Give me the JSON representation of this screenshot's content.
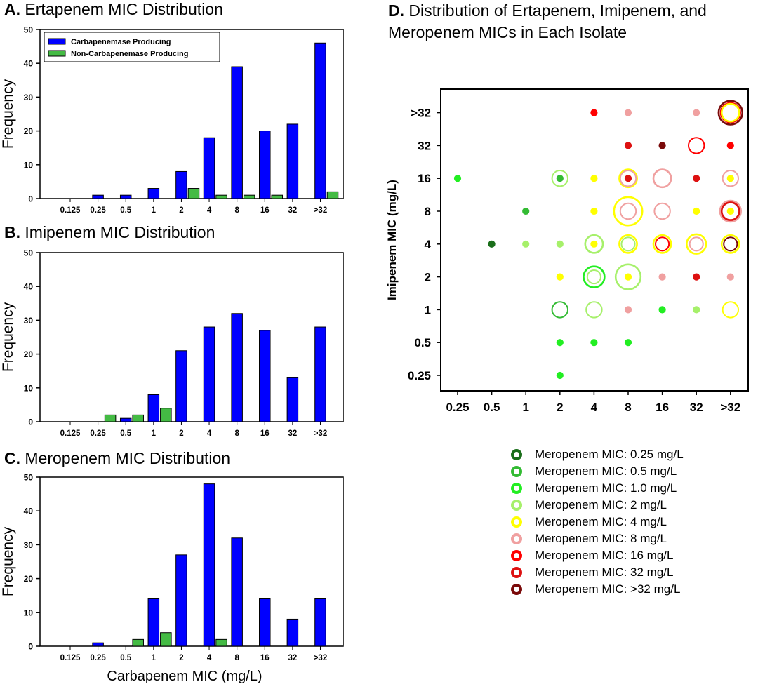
{
  "colors": {
    "carbapenemase": "#0000ff",
    "non_carbapenemase": "#44bb44",
    "meropenem": [
      "#1a6e1a",
      "#33bb33",
      "#22ee22",
      "#a6f06a",
      "#ffff00",
      "#f0a0a0",
      "#ff0000",
      "#dd1111",
      "#7a0a0a"
    ]
  },
  "panel_titles": {
    "a": {
      "letter": "A.",
      "text": " Ertapenem MIC Distribution"
    },
    "b": {
      "letter": "B.",
      "text": " Imipenem MIC Distribution"
    },
    "c": {
      "letter": "C.",
      "text": " Meropenem MIC Distribution"
    },
    "d": {
      "letter": "D.",
      "line1": " Distribution of Ertapenem, Imipenem, and",
      "line2": "Meropenem MICs in Each Isolate"
    }
  },
  "chart_data": [
    {
      "id": "a",
      "type": "bar",
      "title": "A. Ertapenem MIC Distribution",
      "xlabel": "",
      "ylabel": "Frequency",
      "ylim": [
        0,
        50
      ],
      "yticks": [
        0,
        10,
        20,
        30,
        40,
        50
      ],
      "categories": [
        "0.125",
        "0.25",
        "0.5",
        "1",
        "2",
        "4",
        "8",
        "16",
        "32",
        ">32"
      ],
      "series": [
        {
          "name": "Carbapenemase Producing",
          "values": [
            0,
            1,
            1,
            3,
            8,
            18,
            39,
            20,
            22,
            46
          ]
        },
        {
          "name": "Non-Carbapenemase Producing",
          "values": [
            0,
            0,
            0,
            0,
            3,
            1,
            1,
            1,
            0,
            2
          ]
        }
      ],
      "legend": "top-left"
    },
    {
      "id": "b",
      "type": "bar",
      "title": "B. Imipenem MIC Distribution",
      "xlabel": "",
      "ylabel": "Frequency",
      "ylim": [
        0,
        50
      ],
      "yticks": [
        0,
        10,
        20,
        30,
        40,
        50
      ],
      "categories": [
        "0.125",
        "0.25",
        "0.5",
        "1",
        "2",
        "4",
        "8",
        "16",
        "32",
        ">32"
      ],
      "series": [
        {
          "name": "Carbapenemase Producing",
          "values": [
            0,
            0,
            1,
            8,
            21,
            28,
            32,
            27,
            13,
            28
          ]
        },
        {
          "name": "Non-Carbapenemase Producing",
          "values": [
            0,
            2,
            2,
            4,
            0,
            0,
            0,
            0,
            0,
            0
          ]
        }
      ]
    },
    {
      "id": "c",
      "type": "bar",
      "title": "C. Meropenem MIC Distribution",
      "xlabel": "Carbapenem MIC (mg/L)",
      "ylabel": "Frequency",
      "ylim": [
        0,
        50
      ],
      "yticks": [
        0,
        10,
        20,
        30,
        40,
        50
      ],
      "categories": [
        "0.125",
        "0.25",
        "0.5",
        "1",
        "2",
        "4",
        "8",
        "16",
        "32",
        ">32"
      ],
      "series": [
        {
          "name": "Carbapenemase Producing",
          "values": [
            0,
            1,
            0,
            14,
            27,
            48,
            32,
            14,
            8,
            14
          ]
        },
        {
          "name": "Non-Carbapenemase Producing",
          "values": [
            0,
            0,
            2,
            4,
            0,
            2,
            0,
            0,
            0,
            0
          ]
        }
      ]
    },
    {
      "id": "d",
      "type": "scatter",
      "title": "D. Distribution of Ertapenem, Imipenem, and Meropenem MICs in Each Isolate",
      "xlabel": "Ertapenem MIC (mg/L)",
      "ylabel": "Imipenem MIC (mg/L)",
      "x_categories": [
        "0.25",
        "0.5",
        "1",
        "2",
        "4",
        "8",
        "16",
        "32",
        ">32"
      ],
      "y_categories": [
        "0.25",
        "0.5",
        "1",
        "2",
        "4",
        "8",
        "16",
        "32",
        ">32"
      ],
      "legend_labels": [
        "Meropenem MIC: 0.25 mg/L",
        "Meropenem MIC: 0.5 mg/L",
        "Meropenem MIC: 1.0 mg/L",
        "Meropenem MIC: 2 mg/L",
        "Meropenem MIC: 4 mg/L",
        "Meropenem MIC: 8 mg/L",
        "Meropenem MIC: 16 mg/L",
        "Meropenem MIC: 32 mg/L",
        "Meropenem MIC: >32 mg/L"
      ],
      "legend": "below",
      "points": [
        {
          "x": ">32",
          "y": ">32",
          "mero": 8,
          "size": 8
        },
        {
          "x": ">32",
          "y": ">32",
          "mero": 6,
          "size": 5
        },
        {
          "x": ">32",
          "y": ">32",
          "mero": 4,
          "size": 4
        },
        {
          "x": "4",
          "y": ">32",
          "mero": 6,
          "size": 1
        },
        {
          "x": "8",
          "y": ">32",
          "mero": 5,
          "size": 1
        },
        {
          "x": "32",
          "y": ">32",
          "mero": 5,
          "size": 1
        },
        {
          "x": "8",
          "y": "32",
          "mero": 7,
          "size": 1
        },
        {
          "x": "16",
          "y": "32",
          "mero": 8,
          "size": 1
        },
        {
          "x": "32",
          "y": "32",
          "mero": 6,
          "size": 3
        },
        {
          "x": ">32",
          "y": "32",
          "mero": 6,
          "size": 1
        },
        {
          "x": "0.25",
          "y": "16",
          "mero": 2,
          "size": 1
        },
        {
          "x": "2",
          "y": "16",
          "mero": 3,
          "size": 3
        },
        {
          "x": "2",
          "y": "16",
          "mero": 1,
          "size": 1
        },
        {
          "x": "4",
          "y": "16",
          "mero": 4,
          "size": 1
        },
        {
          "x": "8",
          "y": "16",
          "mero": 4,
          "size": 4
        },
        {
          "x": "8",
          "y": "16",
          "mero": 5,
          "size": 3
        },
        {
          "x": "8",
          "y": "16",
          "mero": 7,
          "size": 1
        },
        {
          "x": "16",
          "y": "16",
          "mero": 5,
          "size": 4
        },
        {
          "x": "32",
          "y": "16",
          "mero": 7,
          "size": 1
        },
        {
          "x": ">32",
          "y": "16",
          "mero": 5,
          "size": 3
        },
        {
          "x": ">32",
          "y": "16",
          "mero": 4,
          "size": 1
        },
        {
          "x": "1",
          "y": "8",
          "mero": 1,
          "size": 1
        },
        {
          "x": "4",
          "y": "8",
          "mero": 4,
          "size": 1
        },
        {
          "x": "8",
          "y": "8",
          "mero": 4,
          "size": 12
        },
        {
          "x": "8",
          "y": "8",
          "mero": 5,
          "size": 3
        },
        {
          "x": "16",
          "y": "8",
          "mero": 5,
          "size": 3
        },
        {
          "x": "32",
          "y": "8",
          "mero": 4,
          "size": 1
        },
        {
          "x": ">32",
          "y": "8",
          "mero": 5,
          "size": 6
        },
        {
          "x": ">32",
          "y": "8",
          "mero": 7,
          "size": 4
        },
        {
          "x": ">32",
          "y": "8",
          "mero": 4,
          "size": 1
        },
        {
          "x": "0.5",
          "y": "4",
          "mero": 0,
          "size": 1
        },
        {
          "x": "1",
          "y": "4",
          "mero": 3,
          "size": 1
        },
        {
          "x": "2",
          "y": "4",
          "mero": 3,
          "size": 1
        },
        {
          "x": "4",
          "y": "4",
          "mero": 3,
          "size": 4
        },
        {
          "x": "4",
          "y": "4",
          "mero": 4,
          "size": 1
        },
        {
          "x": "8",
          "y": "4",
          "mero": 4,
          "size": 4
        },
        {
          "x": "8",
          "y": "4",
          "mero": 3,
          "size": 2
        },
        {
          "x": "16",
          "y": "4",
          "mero": 4,
          "size": 4
        },
        {
          "x": "16",
          "y": "4",
          "mero": 6,
          "size": 2
        },
        {
          "x": "32",
          "y": "4",
          "mero": 4,
          "size": 5
        },
        {
          "x": "32",
          "y": "4",
          "mero": 5,
          "size": 2
        },
        {
          "x": ">32",
          "y": "4",
          "mero": 4,
          "size": 4
        },
        {
          "x": ">32",
          "y": "4",
          "mero": 8,
          "size": 2
        },
        {
          "x": "2",
          "y": "2",
          "mero": 4,
          "size": 1
        },
        {
          "x": "4",
          "y": "2",
          "mero": 2,
          "size": 6
        },
        {
          "x": "4",
          "y": "2",
          "mero": 3,
          "size": 2
        },
        {
          "x": "8",
          "y": "2",
          "mero": 3,
          "size": 9
        },
        {
          "x": "8",
          "y": "2",
          "mero": 4,
          "size": 1
        },
        {
          "x": "16",
          "y": "2",
          "mero": 5,
          "size": 1
        },
        {
          "x": "32",
          "y": "2",
          "mero": 7,
          "size": 1
        },
        {
          "x": ">32",
          "y": "2",
          "mero": 5,
          "size": 1
        },
        {
          "x": "2",
          "y": "1",
          "mero": 1,
          "size": 3
        },
        {
          "x": "4",
          "y": "1",
          "mero": 3,
          "size": 3
        },
        {
          "x": "8",
          "y": "1",
          "mero": 5,
          "size": 1
        },
        {
          "x": "16",
          "y": "1",
          "mero": 2,
          "size": 1
        },
        {
          "x": "32",
          "y": "1",
          "mero": 3,
          "size": 1
        },
        {
          "x": ">32",
          "y": "1",
          "mero": 4,
          "size": 3
        },
        {
          "x": "2",
          "y": "0.5",
          "mero": 2,
          "size": 1
        },
        {
          "x": "4",
          "y": "0.5",
          "mero": 2,
          "size": 1
        },
        {
          "x": "8",
          "y": "0.5",
          "mero": 2,
          "size": 1
        },
        {
          "x": "2",
          "y": "0.25",
          "mero": 2,
          "size": 1
        }
      ]
    }
  ]
}
